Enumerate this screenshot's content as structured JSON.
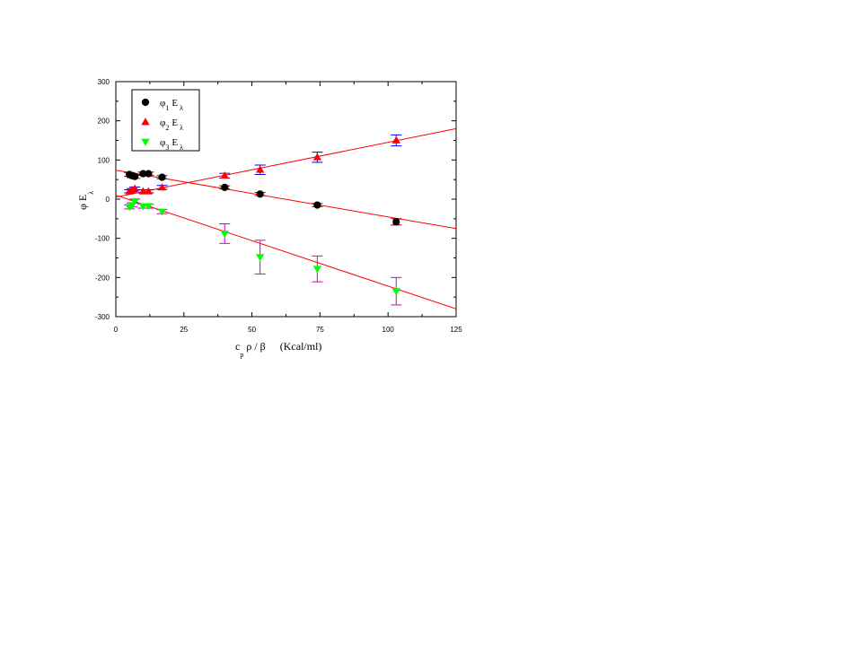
{
  "chart_data": {
    "type": "scatter",
    "x_axis": {
      "label_main": "c",
      "label_sub": "p",
      "label_rest": " ρ / β",
      "label_units": "(Kcal/ml)",
      "range": [
        0,
        125
      ],
      "ticks": [
        0,
        25,
        50,
        75,
        100,
        125
      ]
    },
    "y_axis": {
      "label_main": "φ  E",
      "label_sub": "λ",
      "range": [
        -300,
        300
      ],
      "ticks": [
        -300,
        -200,
        -100,
        0,
        100,
        200,
        300
      ]
    },
    "legend": {
      "placement": "top-left",
      "entries": [
        {
          "symbol": "φ",
          "index": "1",
          "letter": "E",
          "letter_sub": "λ",
          "marker": "circle",
          "color": "#000000"
        },
        {
          "symbol": "φ",
          "index": "2",
          "letter": "E",
          "letter_sub": "λ",
          "marker": "triangle-up",
          "color": "#ff0000"
        },
        {
          "symbol": "φ",
          "index": "3",
          "letter": "E",
          "letter_sub": "λ",
          "marker": "triangle-down",
          "color": "#00ff00"
        }
      ]
    },
    "series": [
      {
        "marker": "circle",
        "color": "#000000",
        "error_color": "#800000",
        "points": [
          {
            "x": 5,
            "y": 63,
            "err": 5
          },
          {
            "x": 6,
            "y": 60,
            "err": 5
          },
          {
            "x": 7,
            "y": 58,
            "err": 5
          },
          {
            "x": 10,
            "y": 65,
            "err": 4
          },
          {
            "x": 12,
            "y": 65,
            "err": 4
          },
          {
            "x": 17,
            "y": 56,
            "err": 4
          },
          {
            "x": 40,
            "y": 30,
            "err": 4
          },
          {
            "x": 53,
            "y": 13,
            "err": 4
          },
          {
            "x": 74,
            "y": -15,
            "err": 4
          },
          {
            "x": 103,
            "y": -58,
            "err": 8
          }
        ],
        "fit": {
          "x": [
            0,
            125
          ],
          "y": [
            74,
            -75
          ]
        }
      },
      {
        "marker": "triangle-up",
        "color": "#ff0000",
        "error_color": "#0000ff",
        "points": [
          {
            "x": 5,
            "y": 20,
            "err": 4
          },
          {
            "x": 6,
            "y": 23,
            "err": 4
          },
          {
            "x": 7,
            "y": 27,
            "err": 4
          },
          {
            "x": 10,
            "y": 20,
            "err": 4
          },
          {
            "x": 12,
            "y": 20,
            "err": 4
          },
          {
            "x": 17,
            "y": 30,
            "err": 5
          },
          {
            "x": 40,
            "y": 60,
            "err": 6
          },
          {
            "x": 53,
            "y": 75,
            "err": 12
          },
          {
            "x": 74,
            "y": 107,
            "err": 13
          },
          {
            "x": 103,
            "y": 150,
            "err": 14
          }
        ],
        "fit": {
          "x": [
            0,
            125
          ],
          "y": [
            5,
            180
          ]
        }
      },
      {
        "marker": "triangle-down",
        "color": "#00ff00",
        "error_color": "#cc00cc",
        "points": [
          {
            "x": 5,
            "y": -20,
            "err": 5
          },
          {
            "x": 6,
            "y": -15,
            "err": 5
          },
          {
            "x": 7,
            "y": -5,
            "err": 5
          },
          {
            "x": 10,
            "y": -18,
            "err": 5
          },
          {
            "x": 12,
            "y": -18,
            "err": 5
          },
          {
            "x": 17,
            "y": -32,
            "err": 5
          },
          {
            "x": 40,
            "y": -88,
            "err": 25
          },
          {
            "x": 53,
            "y": -148,
            "err": 43
          },
          {
            "x": 74,
            "y": -178,
            "err": 33
          },
          {
            "x": 103,
            "y": -235,
            "err": 35
          }
        ],
        "fit": {
          "x": [
            0,
            125
          ],
          "y": [
            10,
            -280
          ]
        }
      }
    ],
    "grid": false
  }
}
